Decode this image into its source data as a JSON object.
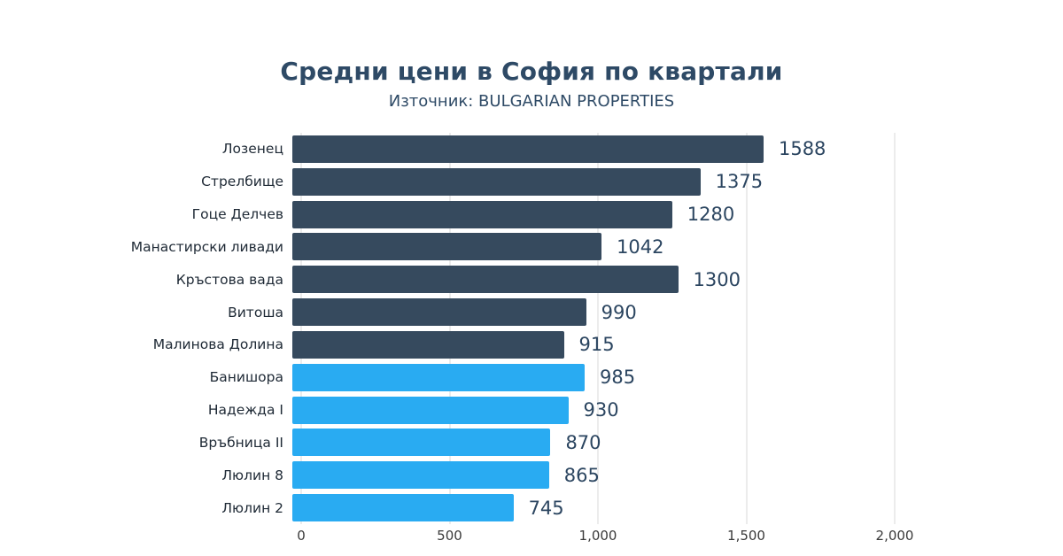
{
  "chart_data": {
    "type": "bar",
    "orientation": "horizontal",
    "title": "Средни цени в София по квартали",
    "subtitle": "Източник: BULGARIAN PROPERTIES",
    "xlabel": "",
    "ylabel": "",
    "xlim": [
      0,
      2000
    ],
    "grid": true,
    "x_ticks": [
      {
        "value": 0,
        "label": "0"
      },
      {
        "value": 500,
        "label": "500"
      },
      {
        "value": 1000,
        "label": "1,000"
      },
      {
        "value": 1500,
        "label": "1,500"
      },
      {
        "value": 2000,
        "label": "2,000"
      }
    ],
    "colors": {
      "dark_bar": "#364a5e",
      "blue_bar": "#29abf2",
      "title_text": "#2e4a66",
      "value_text": "#2b4560",
      "gridline": "#d8d8d8"
    },
    "bars": [
      {
        "category": "Лозенец",
        "value": 1588,
        "group": "dark"
      },
      {
        "category": "Стрелбище",
        "value": 1375,
        "group": "dark"
      },
      {
        "category": "Гоце Делчев",
        "value": 1280,
        "group": "dark"
      },
      {
        "category": "Манастирски ливади",
        "value": 1042,
        "group": "dark"
      },
      {
        "category": "Кръстова вада",
        "value": 1300,
        "group": "dark"
      },
      {
        "category": "Витоша",
        "value": 990,
        "group": "dark"
      },
      {
        "category": "Малинова Долина",
        "value": 915,
        "group": "dark"
      },
      {
        "category": "Банишора",
        "value": 985,
        "group": "blue"
      },
      {
        "category": "Надежда I",
        "value": 930,
        "group": "blue"
      },
      {
        "category": "Връбница II",
        "value": 870,
        "group": "blue"
      },
      {
        "category": "Люлин 8",
        "value": 865,
        "group": "blue"
      },
      {
        "category": "Люлин 2",
        "value": 745,
        "group": "blue"
      }
    ]
  }
}
